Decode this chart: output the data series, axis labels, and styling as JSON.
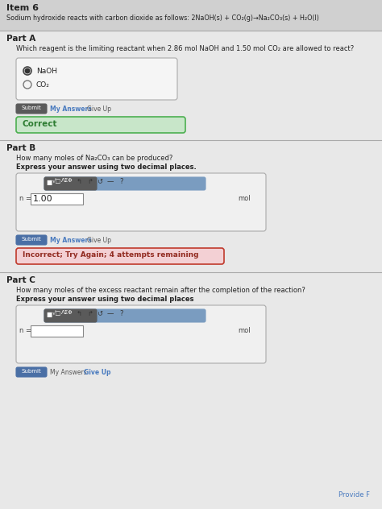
{
  "page_bg": "#d8d8d8",
  "content_bg": "#e8e8e8",
  "item_title": "Item 6",
  "equation_line": "Sodium hydroxide reacts with carbon dioxide as follows: 2NaOH(s) + CO₂(g)→Na₂CO₃(s) + H₂O(l)",
  "partA_label": "Part A",
  "partA_question": "Which reagent is the limiting reactant when 2.86 mol NaOH and 1.50 mol CO₂ are allowed to react?",
  "partA_options": [
    "NaOH",
    "CO₂"
  ],
  "submit_dark_bg": "#5a5a5a",
  "submit_blue_bg": "#4a6fa5",
  "correct_bg": "#c8e6c9",
  "correct_text": "Correct",
  "correct_border": "#4caf50",
  "partB_label": "Part B",
  "partB_question1": "How many moles of Na₂CO₃ can be produced?",
  "partB_question2": "Express your answer using two decimal places.",
  "partB_value": "1.00",
  "partB_unit": "mol",
  "incorrect_bg": "#f3d0d4",
  "incorrect_text": "Incorrect; Try Again; 4 attempts remaining",
  "incorrect_border": "#c0392b",
  "partC_label": "Part C",
  "partC_question1": "How many moles of the excess reactant remain after the completion of the reaction?",
  "partC_question2": "Express your answer using two decimal places",
  "partC_unit": "mol",
  "toolbar_bg": "#5a5a5a",
  "toolbar_highlight": "#7a9cc0",
  "input_box_bg": "#ffffff",
  "link_color": "#4a7bbf",
  "give_up_color": "#555555",
  "provide_text": "Provide F",
  "separator_color": "#aaaaaa",
  "text_dark": "#222222",
  "text_small": "#333333"
}
